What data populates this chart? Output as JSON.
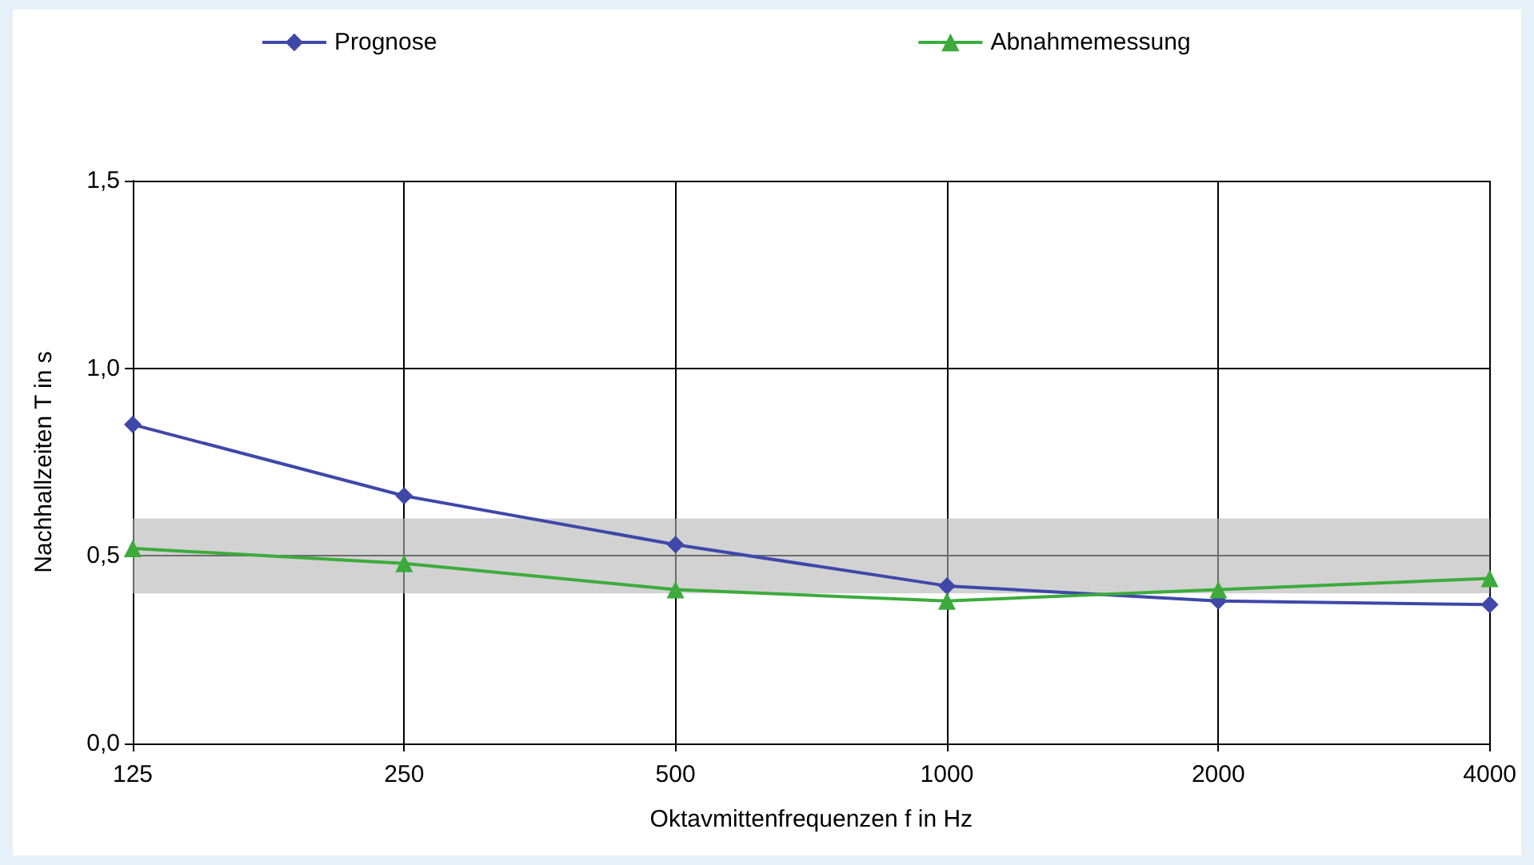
{
  "chart_data": {
    "type": "line",
    "xlabel": "Oktavmittenfrequenzen f in Hz",
    "ylabel": "Nachhallzeiten T in s",
    "categories": [
      "125",
      "250",
      "500",
      "1000",
      "2000",
      "4000"
    ],
    "series": [
      {
        "name": "Prognose",
        "color": "#3f48a8",
        "marker": "diamond",
        "values": [
          0.85,
          0.66,
          0.53,
          0.42,
          0.38,
          0.37
        ]
      },
      {
        "name": "Abnahmemessung",
        "color": "#3cab3c",
        "marker": "triangle",
        "values": [
          0.52,
          0.48,
          0.41,
          0.38,
          0.41,
          0.44
        ]
      }
    ],
    "ylim": [
      0,
      1.5
    ],
    "yticks": [
      {
        "value": 0,
        "label": "0,0"
      },
      {
        "value": 0.5,
        "label": "0,5"
      },
      {
        "value": 1,
        "label": "1,0"
      },
      {
        "value": 1.5,
        "label": "1,5"
      }
    ],
    "bands": [
      {
        "axis": "y",
        "from": 0.4,
        "to": 0.6,
        "color": "#b4b4b4"
      }
    ],
    "grid": true,
    "legend": "top"
  }
}
